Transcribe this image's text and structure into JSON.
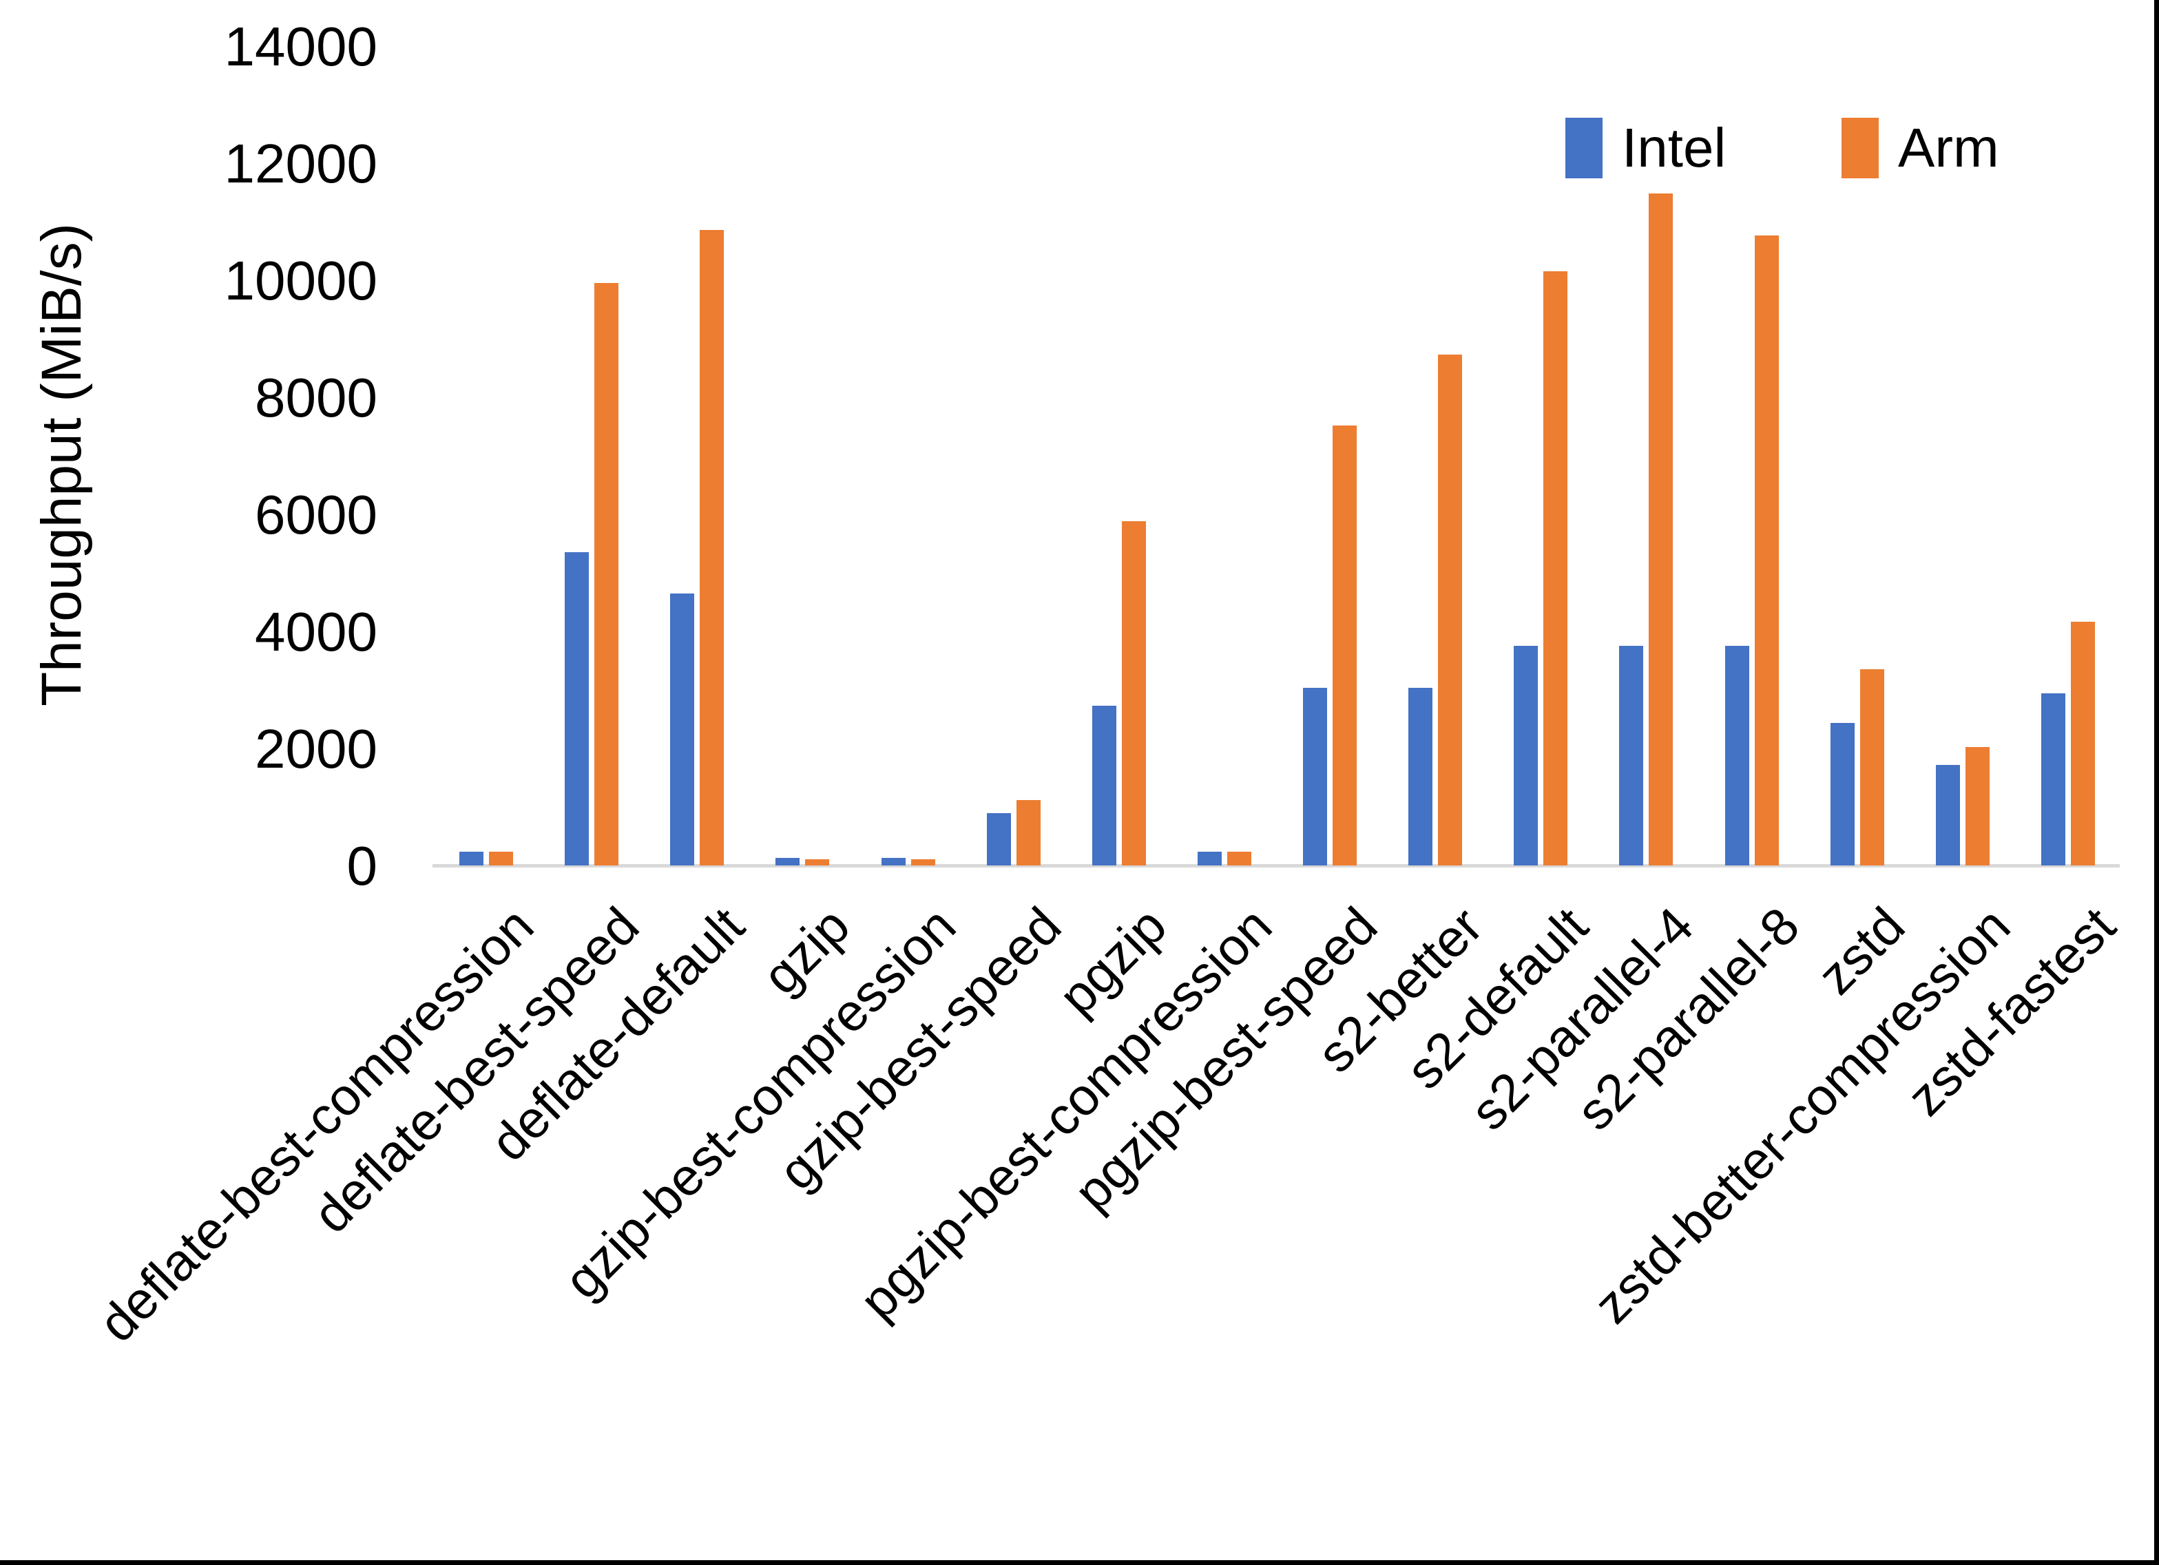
{
  "figure": {
    "ylabel": "Throughput (MiB/s)",
    "background_color": "#FFFFFF",
    "frame_color": "#000000",
    "axis_line_color": "#D9D9D9"
  },
  "legend": {
    "position": "top-right",
    "items": [
      {
        "label": "Intel",
        "color": "#4472C4"
      },
      {
        "label": "Arm",
        "color": "#ED7D31"
      }
    ]
  },
  "chart_data": {
    "type": "bar",
    "title": "",
    "xlabel": "",
    "ylabel": "Throughput (MiB/s)",
    "ylim": [
      0,
      14000
    ],
    "yticks": [
      0,
      2000,
      4000,
      6000,
      8000,
      10000,
      12000,
      14000
    ],
    "grid": false,
    "legend_position": "top-right",
    "categories": [
      "deflate-best-compression",
      "deflate-best-speed",
      "deflate-default",
      "gzip",
      "gzip-best-compression",
      "gzip-best-speed",
      "pgzip",
      "pgzip-best-compression",
      "pgzip-best-speed",
      "s2-better",
      "s2-default",
      "s2-parallel-4",
      "s2-parallel-8",
      "zstd",
      "zstd-better-compression",
      "zstd-fastest"
    ],
    "series": [
      {
        "name": "Intel",
        "color": "#4472C4",
        "values": [
          240,
          5350,
          4650,
          130,
          130,
          890,
          2730,
          230,
          3030,
          3030,
          3750,
          3750,
          3750,
          2430,
          1720,
          2940
        ]
      },
      {
        "name": "Arm",
        "color": "#ED7D31",
        "values": [
          240,
          9950,
          10860,
          100,
          110,
          1120,
          5880,
          240,
          7520,
          8730,
          10150,
          11480,
          10760,
          3350,
          2020,
          4170
        ]
      }
    ]
  }
}
